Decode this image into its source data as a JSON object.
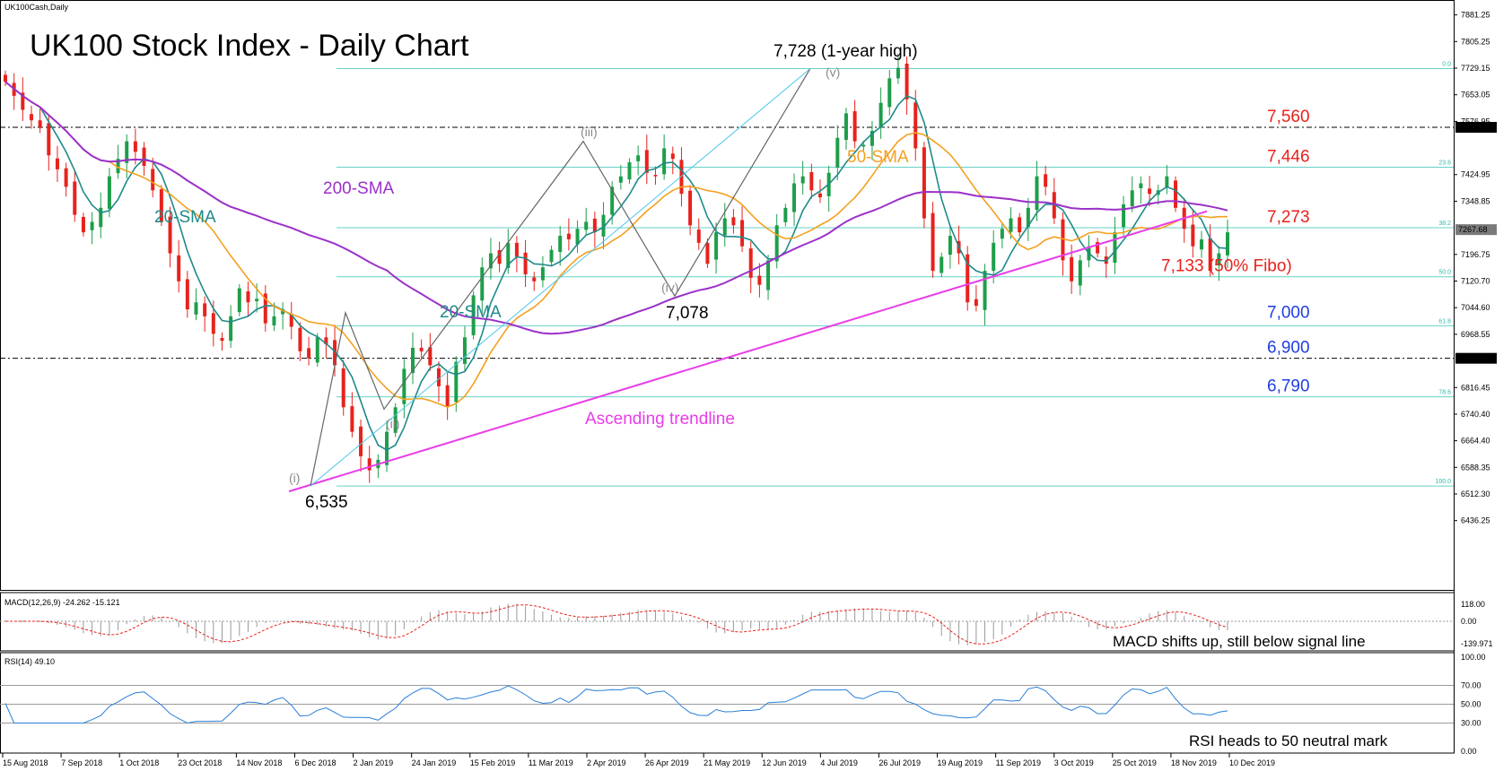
{
  "header": {
    "symbol": "UK100Cash,Daily",
    "title": "UK100 Stock Index - Daily Chart"
  },
  "chart_data": {
    "type": "candlestick",
    "price_axis": {
      "ylim": [
        6380,
        7880
      ],
      "ticks": [
        "7881.25",
        "7805.25",
        "7729.15",
        "7653.05",
        "7576.95",
        "7424.95",
        "7348.85",
        "7196.75",
        "7120.70",
        "7044.60",
        "6968.55",
        "6816.45",
        "6740.40",
        "6664.40",
        "6588.35",
        "6512.30",
        "6436.25"
      ],
      "tick_values": [
        7881.25,
        7805.25,
        7729.15,
        7653.05,
        7576.95,
        7424.95,
        7348.85,
        7196.75,
        7120.7,
        7044.6,
        6968.55,
        6816.45,
        6740.4,
        6664.4,
        6588.35,
        6512.3,
        6436.25
      ],
      "boxed_labels": [
        {
          "text": "7560.00",
          "value": 7560,
          "style": "dark"
        },
        {
          "text": "7267.68",
          "value": 7267.68,
          "style": "gray"
        },
        {
          "text": "6900.00",
          "value": 6900,
          "style": "dark"
        }
      ]
    },
    "x_labels": [
      "15 Aug 2018",
      "7 Sep 2018",
      "1 Oct 2018",
      "23 Oct 2018",
      "14 Nov 2018",
      "6 Dec 2018",
      "2 Jan 2019",
      "24 Jan 2019",
      "15 Feb 2019",
      "11 Mar 2019",
      "2 Apr 2019",
      "26 Apr 2019",
      "21 May 2019",
      "12 Jun 2019",
      "4 Jul 2019",
      "26 Jul 2019",
      "19 Aug 2019",
      "11 Sep 2019",
      "3 Oct 2019",
      "25 Oct 2019",
      "18 Nov 2019",
      "10 Dec 2019"
    ],
    "close_series": [
      7690,
      7650,
      7610,
      7580,
      7560,
      7480,
      7440,
      7390,
      7310,
      7260,
      7290,
      7330,
      7420,
      7470,
      7520,
      7490,
      7450,
      7380,
      7290,
      7200,
      7120,
      7040,
      7060,
      7020,
      6970,
      6950,
      7020,
      7100,
      7060,
      7070,
      7000,
      7020,
      7040,
      6990,
      6920,
      6900,
      6960,
      6940,
      6880,
      6760,
      6690,
      6620,
      6580,
      6610,
      6690,
      6760,
      6870,
      6930,
      6920,
      6880,
      6820,
      6760,
      6890,
      6960,
      7080,
      7160,
      7200,
      7170,
      7230,
      7190,
      7140,
      7120,
      7160,
      7210,
      7250,
      7240,
      7270,
      7290,
      7260,
      7310,
      7390,
      7420,
      7460,
      7480,
      7430,
      7420,
      7500,
      7470,
      7370,
      7280,
      7230,
      7170,
      7260,
      7300,
      7280,
      7220,
      7130,
      7110,
      7180,
      7280,
      7330,
      7400,
      7420,
      7380,
      7360,
      7430,
      7530,
      7600,
      7520,
      7510,
      7550,
      7630,
      7700,
      7730,
      7640,
      7500,
      7300,
      7150,
      7190,
      7250,
      7200,
      7060,
      7050,
      7150,
      7230,
      7270,
      7300,
      7260,
      7330,
      7420,
      7390,
      7300,
      7180,
      7120,
      7180,
      7220,
      7200,
      7170,
      7260,
      7340,
      7380,
      7400,
      7370,
      7380,
      7420,
      7330,
      7270,
      7220,
      7240,
      7150,
      7200,
      7260
    ],
    "fibonacci": [
      {
        "label": "0.0",
        "value": 7728
      },
      {
        "label": "23.6",
        "value": 7446
      },
      {
        "label": "38.2",
        "value": 7273
      },
      {
        "label": "50.0",
        "value": 7133
      },
      {
        "label": "61.8",
        "value": 6993
      },
      {
        "label": "78.6",
        "value": 6790
      },
      {
        "label": "100.0",
        "value": 6535
      }
    ],
    "dashed_levels": [
      7560,
      6900
    ],
    "annotations": {
      "high": "7,728 (1-year high)",
      "low": "6,535",
      "mid_low": "7,078",
      "sma200": "200-SMA",
      "sma20_left": "20-SMA",
      "sma20_mid": "20-SMA",
      "sma50": "50-SMA",
      "trendline": "Ascending trendline",
      "levels": [
        {
          "text": "7,560",
          "value": 7560,
          "color": "#e8221c"
        },
        {
          "text": "7,446",
          "value": 7446,
          "color": "#e8221c"
        },
        {
          "text": "7,273",
          "value": 7273,
          "color": "#e8221c"
        },
        {
          "text": "7,133 (50% Fibo)",
          "value": 7133,
          "color": "#e8221c"
        },
        {
          "text": "7,000",
          "value": 7000,
          "color": "#1f3ee0"
        },
        {
          "text": "6,900",
          "value": 6900,
          "color": "#1f3ee0"
        },
        {
          "text": "6,790",
          "value": 6790,
          "color": "#1f3ee0"
        }
      ],
      "waves": [
        "(i)",
        "(ii)",
        "(iii)",
        "(iv)",
        "(v)"
      ]
    },
    "macd": {
      "label": "MACD(12,26,9) -24.262 -15.121",
      "ticks": [
        "118.00",
        "0.00",
        "-139.971"
      ],
      "note": "MACD shifts up, still below signal line"
    },
    "rsi": {
      "label": "RSI(14) 49.10",
      "ticks": [
        "100.00",
        "70.00",
        "50.00",
        "30.00",
        "0.00"
      ],
      "levels": [
        70,
        50,
        30
      ],
      "note": "RSI heads to 50 neutral mark"
    },
    "colors": {
      "bull": "#1e9e4a",
      "bear": "#e8221c",
      "sma20": "#1f8a8a",
      "sma50": "#f4a020",
      "sma200": "#9b30c8",
      "trend": "#e83ce8",
      "fibo": "#66d1c8",
      "rsi": "#2a7ed8",
      "macd_signal": "#e8221c",
      "macd_hist": "#9a9a9a"
    }
  }
}
